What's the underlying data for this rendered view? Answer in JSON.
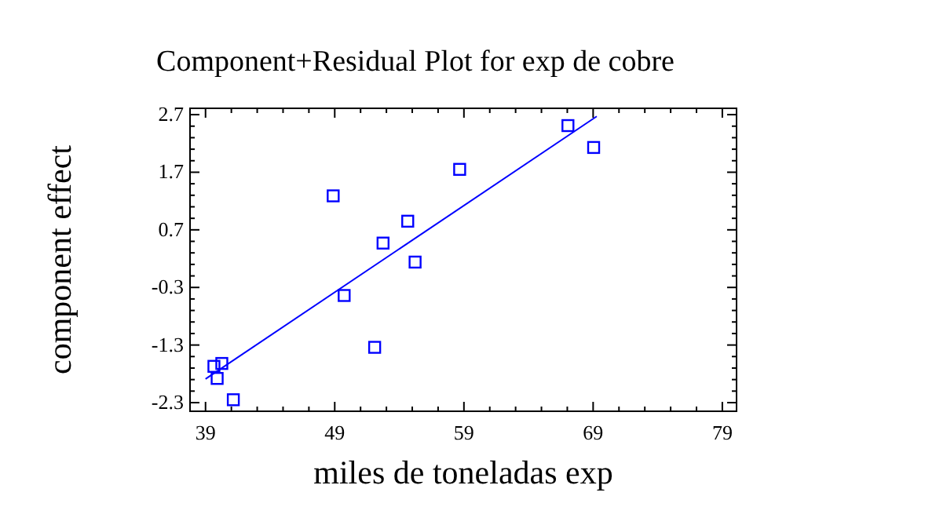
{
  "chart_data": {
    "type": "scatter",
    "title": "Component+Residual Plot for exp de cobre",
    "xlabel": "miles de toneladas exp",
    "ylabel": "component effect",
    "xlim": [
      37.8,
      80.1
    ],
    "ylim": [
      -2.45,
      2.81
    ],
    "xticks": [
      39,
      49,
      59,
      69,
      79
    ],
    "yticks": [
      -2.3,
      -1.3,
      -0.3,
      0.7,
      1.7,
      2.7
    ],
    "grid": false,
    "series": [
      {
        "color": "#0000ff",
        "marker": "square",
        "x": [
          39.65,
          40.26,
          39.9,
          41.15,
          48.88,
          49.73,
          52.09,
          52.74,
          54.65,
          55.22,
          58.67,
          67.05,
          69.04
        ],
        "values": [
          -1.67,
          -1.62,
          -1.88,
          -2.25,
          1.29,
          -0.44,
          -1.34,
          0.47,
          0.85,
          0.14,
          1.75,
          2.51,
          2.13
        ]
      },
      {
        "type": "line",
        "color": "#0000ff",
        "marker": "none",
        "x": [
          39,
          69.28
        ],
        "values": [
          -1.89,
          2.67
        ]
      }
    ]
  }
}
